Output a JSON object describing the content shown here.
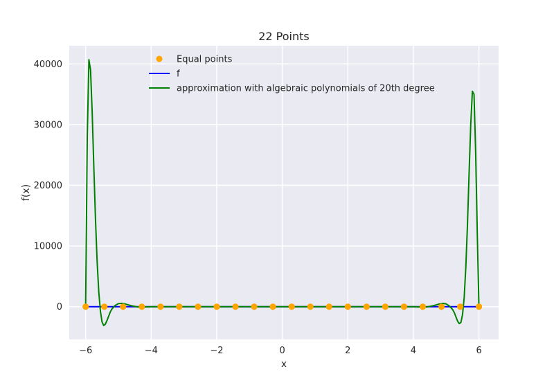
{
  "chart_data": {
    "type": "line",
    "title": "22 Points",
    "xlabel": "x",
    "ylabel": "f(x)",
    "xlim": [
      -6.5,
      6.6
    ],
    "ylim": [
      -5400,
      43000
    ],
    "x_ticks": [
      -6,
      -4,
      -2,
      0,
      2,
      4,
      6
    ],
    "x_tick_labels": [
      "−6",
      "−4",
      "−2",
      "0",
      "2",
      "4",
      "6"
    ],
    "y_ticks": [
      0,
      10000,
      20000,
      30000,
      40000
    ],
    "y_tick_labels": [
      "0",
      "10000",
      "20000",
      "30000",
      "40000"
    ],
    "grid": true,
    "legend_position": "top-center",
    "series": [
      {
        "name": "Equal points",
        "kind": "scatter",
        "color": "#ffa500",
        "x": [
          -6.0,
          -5.4286,
          -4.8571,
          -4.2857,
          -3.7143,
          -3.1429,
          -2.5714,
          -2.0,
          -1.4286,
          -0.8571,
          -0.2857,
          0.2857,
          0.8571,
          1.4286,
          2.0,
          2.5714,
          3.1429,
          3.7143,
          4.2857,
          4.8571,
          5.4286,
          6.0
        ],
        "y": [
          0,
          0,
          0,
          0,
          0,
          0,
          0,
          0,
          0,
          0,
          0,
          0,
          0,
          0,
          0,
          0,
          0,
          0,
          0,
          0,
          0,
          0
        ]
      },
      {
        "name": "f",
        "kind": "line",
        "color": "#0000ff",
        "x": [
          -6,
          6
        ],
        "y": [
          0,
          0
        ]
      },
      {
        "name": "approximation with algebraic polynomials of 20th degree",
        "kind": "line",
        "color": "#008000",
        "x": [
          -6.0,
          -5.95,
          -5.9,
          -5.85,
          -5.8,
          -5.75,
          -5.7,
          -5.65,
          -5.6,
          -5.55,
          -5.5,
          -5.45,
          -5.4,
          -5.35,
          -5.3,
          -5.25,
          -5.2,
          -5.1,
          -5.0,
          -4.9,
          -4.8,
          -4.7,
          -4.6,
          -4.5,
          -4.4,
          -4.3,
          -4.2,
          -4.0,
          -3.7,
          3.7,
          4.0,
          4.2,
          4.3,
          4.4,
          4.5,
          4.6,
          4.7,
          4.8,
          4.9,
          5.0,
          5.1,
          5.2,
          5.25,
          5.3,
          5.35,
          5.4,
          5.45,
          5.5,
          5.55,
          5.6,
          5.65,
          5.7,
          5.75,
          5.8,
          5.85,
          5.9,
          5.95,
          6.0
        ],
        "y": [
          0,
          28000,
          40700,
          39000,
          32000,
          23000,
          14500,
          7500,
          2500,
          -700,
          -2500,
          -3100,
          -2900,
          -2300,
          -1600,
          -900,
          -400,
          200,
          500,
          550,
          450,
          300,
          150,
          50,
          -50,
          -80,
          -50,
          0,
          0,
          0,
          0,
          -50,
          -80,
          -50,
          50,
          150,
          300,
          450,
          550,
          450,
          100,
          -500,
          -1000,
          -1700,
          -2400,
          -2800,
          -2600,
          -1300,
          1500,
          6500,
          13500,
          22000,
          30000,
          35500,
          35000,
          25500,
          12000,
          0
        ]
      }
    ]
  }
}
